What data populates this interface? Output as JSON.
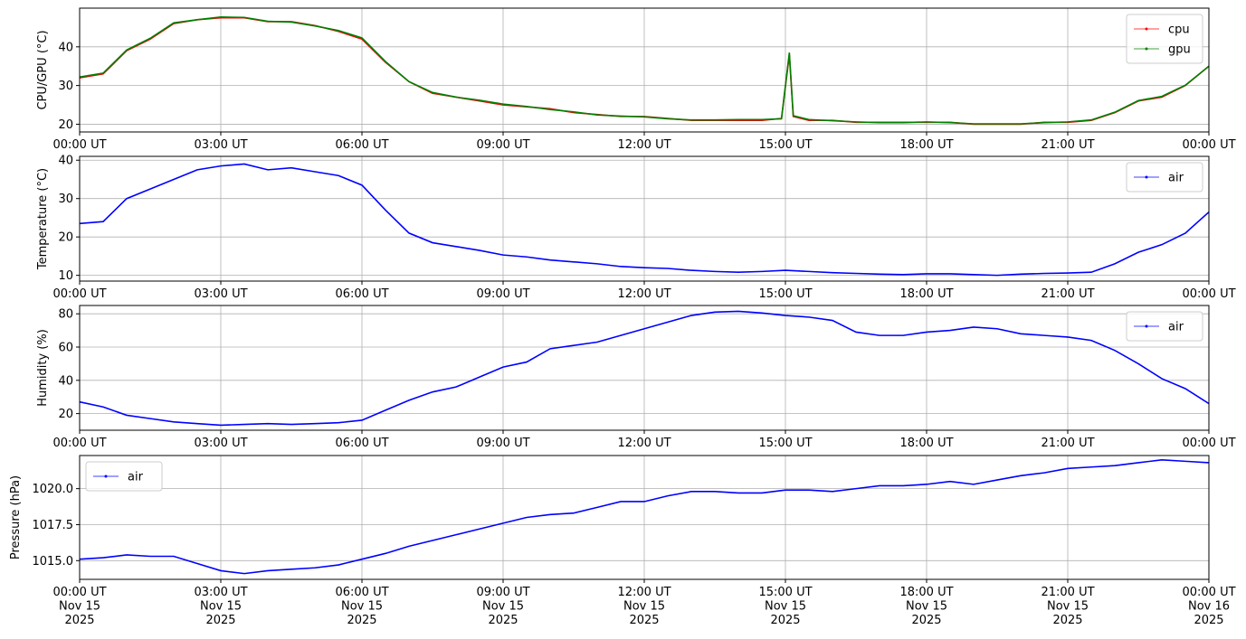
{
  "chart_data": [
    {
      "type": "line",
      "ylabel": "CPU/GPU (°C)",
      "legend": "upper right",
      "grid": true,
      "x": [
        "2025-11-15 00:00",
        "2025-11-15 00:30",
        "2025-11-15 01:00",
        "2025-11-15 01:30",
        "2025-11-15 02:00",
        "2025-11-15 02:30",
        "2025-11-15 03:00",
        "2025-11-15 03:30",
        "2025-11-15 04:00",
        "2025-11-15 04:30",
        "2025-11-15 05:00",
        "2025-11-15 05:30",
        "2025-11-15 06:00",
        "2025-11-15 06:30",
        "2025-11-15 07:00",
        "2025-11-15 07:30",
        "2025-11-15 08:00",
        "2025-11-15 08:30",
        "2025-11-15 09:00",
        "2025-11-15 09:30",
        "2025-11-15 10:00",
        "2025-11-15 10:30",
        "2025-11-15 11:00",
        "2025-11-15 11:30",
        "2025-11-15 12:00",
        "2025-11-15 12:30",
        "2025-11-15 13:00",
        "2025-11-15 13:30",
        "2025-11-15 14:00",
        "2025-11-15 14:30",
        "2025-11-15 14:55",
        "2025-11-15 15:05",
        "2025-11-15 15:10",
        "2025-11-15 15:30",
        "2025-11-15 16:00",
        "2025-11-15 16:30",
        "2025-11-15 17:00",
        "2025-11-15 17:30",
        "2025-11-15 18:00",
        "2025-11-15 18:30",
        "2025-11-15 19:00",
        "2025-11-15 19:30",
        "2025-11-15 20:00",
        "2025-11-15 20:30",
        "2025-11-15 21:00",
        "2025-11-15 21:30",
        "2025-11-15 22:00",
        "2025-11-15 22:30",
        "2025-11-15 23:00",
        "2025-11-15 23:30",
        "2025-11-16 00:00"
      ],
      "series": [
        {
          "name": "cpu",
          "color": "#ff0000",
          "values": [
            32,
            33,
            39,
            42,
            46,
            47,
            47.5,
            47.5,
            46.5,
            46.5,
            45.5,
            44,
            42,
            36,
            31,
            28,
            27,
            26,
            25,
            24.5,
            24,
            23,
            22.5,
            22,
            22,
            21.5,
            21,
            21,
            21,
            21,
            21.5,
            38,
            22,
            21,
            21,
            20.5,
            20.5,
            20.5,
            20.5,
            20.5,
            20,
            20,
            20,
            20.5,
            20.5,
            21,
            23,
            26,
            27,
            30,
            35
          ]
        },
        {
          "name": "gpu",
          "color": "#008000",
          "values": [
            32.2,
            33.2,
            39.2,
            42.2,
            46.2,
            47,
            47.7,
            47.6,
            46.6,
            46.4,
            45.4,
            44.2,
            42.3,
            36.2,
            31,
            28.2,
            27,
            26.2,
            25.2,
            24.6,
            23.8,
            23.2,
            22.4,
            22.1,
            21.9,
            21.4,
            21.1,
            21.1,
            21.2,
            21.2,
            21.4,
            38.5,
            22.2,
            21.2,
            20.9,
            20.6,
            20.4,
            20.4,
            20.6,
            20.4,
            20.1,
            20.1,
            20.1,
            20.4,
            20.6,
            21.1,
            23.1,
            26.1,
            27.2,
            30.1,
            35
          ]
        }
      ],
      "xlim": [
        "2025-11-15 00:00",
        "2025-11-16 00:00"
      ],
      "xticks": [
        {
          "value": "2025-11-15 00:00",
          "label": "00:00 UT"
        },
        {
          "value": "2025-11-15 03:00",
          "label": "03:00 UT"
        },
        {
          "value": "2025-11-15 06:00",
          "label": "06:00 UT"
        },
        {
          "value": "2025-11-15 09:00",
          "label": "09:00 UT"
        },
        {
          "value": "2025-11-15 12:00",
          "label": "12:00 UT"
        },
        {
          "value": "2025-11-15 15:00",
          "label": "15:00 UT"
        },
        {
          "value": "2025-11-15 18:00",
          "label": "18:00 UT"
        },
        {
          "value": "2025-11-15 21:00",
          "label": "21:00 UT"
        },
        {
          "value": "2025-11-16 00:00",
          "label": "00:00 UT"
        }
      ],
      "ylim": [
        18,
        50
      ],
      "yticks": [
        20,
        30,
        40
      ]
    },
    {
      "type": "line",
      "ylabel": "Temperature (°C)",
      "legend": "upper right",
      "grid": true,
      "x": [
        "2025-11-15 00:00",
        "2025-11-15 00:30",
        "2025-11-15 01:00",
        "2025-11-15 01:30",
        "2025-11-15 02:00",
        "2025-11-15 02:30",
        "2025-11-15 03:00",
        "2025-11-15 03:30",
        "2025-11-15 04:00",
        "2025-11-15 04:30",
        "2025-11-15 05:00",
        "2025-11-15 05:30",
        "2025-11-15 06:00",
        "2025-11-15 06:30",
        "2025-11-15 07:00",
        "2025-11-15 07:30",
        "2025-11-15 08:00",
        "2025-11-15 08:30",
        "2025-11-15 09:00",
        "2025-11-15 09:30",
        "2025-11-15 10:00",
        "2025-11-15 10:30",
        "2025-11-15 11:00",
        "2025-11-15 11:30",
        "2025-11-15 12:00",
        "2025-11-15 12:30",
        "2025-11-15 13:00",
        "2025-11-15 13:30",
        "2025-11-15 14:00",
        "2025-11-15 14:30",
        "2025-11-15 15:00",
        "2025-11-15 15:30",
        "2025-11-15 16:00",
        "2025-11-15 16:30",
        "2025-11-15 17:00",
        "2025-11-15 17:30",
        "2025-11-15 18:00",
        "2025-11-15 18:30",
        "2025-11-15 19:00",
        "2025-11-15 19:30",
        "2025-11-15 20:00",
        "2025-11-15 20:30",
        "2025-11-15 21:00",
        "2025-11-15 21:30",
        "2025-11-15 22:00",
        "2025-11-15 22:30",
        "2025-11-15 23:00",
        "2025-11-15 23:30",
        "2025-11-16 00:00"
      ],
      "series": [
        {
          "name": "air",
          "color": "#0000ff",
          "values": [
            23.5,
            24,
            30,
            32.5,
            35,
            37.5,
            38.5,
            39,
            37.5,
            38,
            37,
            36,
            33.5,
            27,
            21,
            18.5,
            17.5,
            16.5,
            15.3,
            14.8,
            14,
            13.5,
            13,
            12.3,
            12,
            11.8,
            11.3,
            11,
            10.8,
            11,
            11.3,
            11,
            10.7,
            10.5,
            10.3,
            10.2,
            10.4,
            10.4,
            10.2,
            10,
            10.3,
            10.5,
            10.6,
            10.8,
            13,
            16,
            18,
            21,
            26.5
          ]
        }
      ],
      "xlim": [
        "2025-11-15 00:00",
        "2025-11-16 00:00"
      ],
      "xticks": [
        {
          "value": "2025-11-15 00:00",
          "label": "00:00 UT"
        },
        {
          "value": "2025-11-15 03:00",
          "label": "03:00 UT"
        },
        {
          "value": "2025-11-15 06:00",
          "label": "06:00 UT"
        },
        {
          "value": "2025-11-15 09:00",
          "label": "09:00 UT"
        },
        {
          "value": "2025-11-15 12:00",
          "label": "12:00 UT"
        },
        {
          "value": "2025-11-15 15:00",
          "label": "15:00 UT"
        },
        {
          "value": "2025-11-15 18:00",
          "label": "18:00 UT"
        },
        {
          "value": "2025-11-15 21:00",
          "label": "21:00 UT"
        },
        {
          "value": "2025-11-16 00:00",
          "label": "00:00 UT"
        }
      ],
      "ylim": [
        8.5,
        41
      ],
      "yticks": [
        10,
        20,
        30,
        40
      ]
    },
    {
      "type": "line",
      "ylabel": "Humidity (%)",
      "legend": "upper right",
      "grid": true,
      "x": [
        "2025-11-15 00:00",
        "2025-11-15 00:30",
        "2025-11-15 01:00",
        "2025-11-15 01:30",
        "2025-11-15 02:00",
        "2025-11-15 02:30",
        "2025-11-15 03:00",
        "2025-11-15 03:30",
        "2025-11-15 04:00",
        "2025-11-15 04:30",
        "2025-11-15 05:00",
        "2025-11-15 05:30",
        "2025-11-15 06:00",
        "2025-11-15 06:30",
        "2025-11-15 07:00",
        "2025-11-15 07:30",
        "2025-11-15 08:00",
        "2025-11-15 08:30",
        "2025-11-15 09:00",
        "2025-11-15 09:30",
        "2025-11-15 10:00",
        "2025-11-15 10:30",
        "2025-11-15 11:00",
        "2025-11-15 11:30",
        "2025-11-15 12:00",
        "2025-11-15 12:30",
        "2025-11-15 13:00",
        "2025-11-15 13:30",
        "2025-11-15 14:00",
        "2025-11-15 14:30",
        "2025-11-15 15:00",
        "2025-11-15 15:30",
        "2025-11-15 16:00",
        "2025-11-15 16:30",
        "2025-11-15 17:00",
        "2025-11-15 17:30",
        "2025-11-15 18:00",
        "2025-11-15 18:30",
        "2025-11-15 19:00",
        "2025-11-15 19:30",
        "2025-11-15 20:00",
        "2025-11-15 20:30",
        "2025-11-15 21:00",
        "2025-11-15 21:30",
        "2025-11-15 22:00",
        "2025-11-15 22:30",
        "2025-11-15 23:00",
        "2025-11-15 23:30",
        "2025-11-16 00:00"
      ],
      "series": [
        {
          "name": "air",
          "color": "#0000ff",
          "values": [
            27,
            24,
            19,
            17,
            15,
            14,
            13,
            13.5,
            14,
            13.5,
            14,
            14.5,
            16,
            22,
            28,
            33,
            36,
            42,
            48,
            51,
            59,
            61,
            63,
            67,
            71,
            75,
            79,
            81,
            81.5,
            80.5,
            79,
            78,
            76,
            69,
            67,
            67,
            69,
            70,
            72,
            71,
            68,
            67,
            66,
            64,
            58,
            50,
            41,
            35,
            26
          ]
        }
      ],
      "xlim": [
        "2025-11-15 00:00",
        "2025-11-16 00:00"
      ],
      "xticks": [
        {
          "value": "2025-11-15 00:00",
          "label": "00:00 UT"
        },
        {
          "value": "2025-11-15 03:00",
          "label": "03:00 UT"
        },
        {
          "value": "2025-11-15 06:00",
          "label": "06:00 UT"
        },
        {
          "value": "2025-11-15 09:00",
          "label": "09:00 UT"
        },
        {
          "value": "2025-11-15 12:00",
          "label": "12:00 UT"
        },
        {
          "value": "2025-11-15 15:00",
          "label": "15:00 UT"
        },
        {
          "value": "2025-11-15 18:00",
          "label": "18:00 UT"
        },
        {
          "value": "2025-11-15 21:00",
          "label": "21:00 UT"
        },
        {
          "value": "2025-11-16 00:00",
          "label": "00:00 UT"
        }
      ],
      "ylim": [
        10,
        85
      ],
      "yticks": [
        20,
        40,
        60,
        80
      ]
    },
    {
      "type": "line",
      "ylabel": "Pressure (hPa)",
      "legend": "upper left",
      "grid": true,
      "x": [
        "2025-11-15 00:00",
        "2025-11-15 00:30",
        "2025-11-15 01:00",
        "2025-11-15 01:30",
        "2025-11-15 02:00",
        "2025-11-15 02:30",
        "2025-11-15 03:00",
        "2025-11-15 03:30",
        "2025-11-15 04:00",
        "2025-11-15 04:30",
        "2025-11-15 05:00",
        "2025-11-15 05:30",
        "2025-11-15 06:00",
        "2025-11-15 06:30",
        "2025-11-15 07:00",
        "2025-11-15 07:30",
        "2025-11-15 08:00",
        "2025-11-15 08:30",
        "2025-11-15 09:00",
        "2025-11-15 09:30",
        "2025-11-15 10:00",
        "2025-11-15 10:30",
        "2025-11-15 11:00",
        "2025-11-15 11:30",
        "2025-11-15 12:00",
        "2025-11-15 12:30",
        "2025-11-15 13:00",
        "2025-11-15 13:30",
        "2025-11-15 14:00",
        "2025-11-15 14:30",
        "2025-11-15 15:00",
        "2025-11-15 15:30",
        "2025-11-15 16:00",
        "2025-11-15 16:30",
        "2025-11-15 17:00",
        "2025-11-15 17:30",
        "2025-11-15 18:00",
        "2025-11-15 18:30",
        "2025-11-15 19:00",
        "2025-11-15 19:30",
        "2025-11-15 20:00",
        "2025-11-15 20:30",
        "2025-11-15 21:00",
        "2025-11-15 21:30",
        "2025-11-15 22:00",
        "2025-11-15 22:30",
        "2025-11-15 23:00",
        "2025-11-15 23:30",
        "2025-11-16 00:00"
      ],
      "series": [
        {
          "name": "air",
          "color": "#0000ff",
          "values": [
            1015.1,
            1015.2,
            1015.4,
            1015.3,
            1015.3,
            1014.8,
            1014.3,
            1014.1,
            1014.3,
            1014.4,
            1014.5,
            1014.7,
            1015.1,
            1015.5,
            1016.0,
            1016.4,
            1016.8,
            1017.2,
            1017.6,
            1018.0,
            1018.2,
            1018.3,
            1018.7,
            1019.1,
            1019.1,
            1019.5,
            1019.8,
            1019.8,
            1019.7,
            1019.7,
            1019.9,
            1019.9,
            1019.8,
            1020.0,
            1020.2,
            1020.2,
            1020.3,
            1020.5,
            1020.3,
            1020.6,
            1020.9,
            1021.1,
            1021.4,
            1021.5,
            1021.6,
            1021.8,
            1022.0,
            1021.9,
            1021.8
          ]
        }
      ],
      "xlim": [
        "2025-11-15 00:00",
        "2025-11-16 00:00"
      ],
      "xticks": [
        {
          "value": "2025-11-15 00:00",
          "label": "00:00 UT\nNov 15\n2025"
        },
        {
          "value": "2025-11-15 03:00",
          "label": "03:00 UT\nNov 15\n2025"
        },
        {
          "value": "2025-11-15 06:00",
          "label": "06:00 UT\nNov 15\n2025"
        },
        {
          "value": "2025-11-15 09:00",
          "label": "09:00 UT\nNov 15\n2025"
        },
        {
          "value": "2025-11-15 12:00",
          "label": "12:00 UT\nNov 15\n2025"
        },
        {
          "value": "2025-11-15 15:00",
          "label": "15:00 UT\nNov 15\n2025"
        },
        {
          "value": "2025-11-15 18:00",
          "label": "18:00 UT\nNov 15\n2025"
        },
        {
          "value": "2025-11-15 21:00",
          "label": "21:00 UT\nNov 15\n2025"
        },
        {
          "value": "2025-11-16 00:00",
          "label": "00:00 UT\nNov 16\n2025"
        }
      ],
      "ylim": [
        1013.7,
        1022.3
      ],
      "yticks": [
        {
          "value": 1015,
          "label": "1015.0"
        },
        1017.5,
        {
          "value": 1020,
          "label": "1020.0"
        }
      ]
    }
  ]
}
